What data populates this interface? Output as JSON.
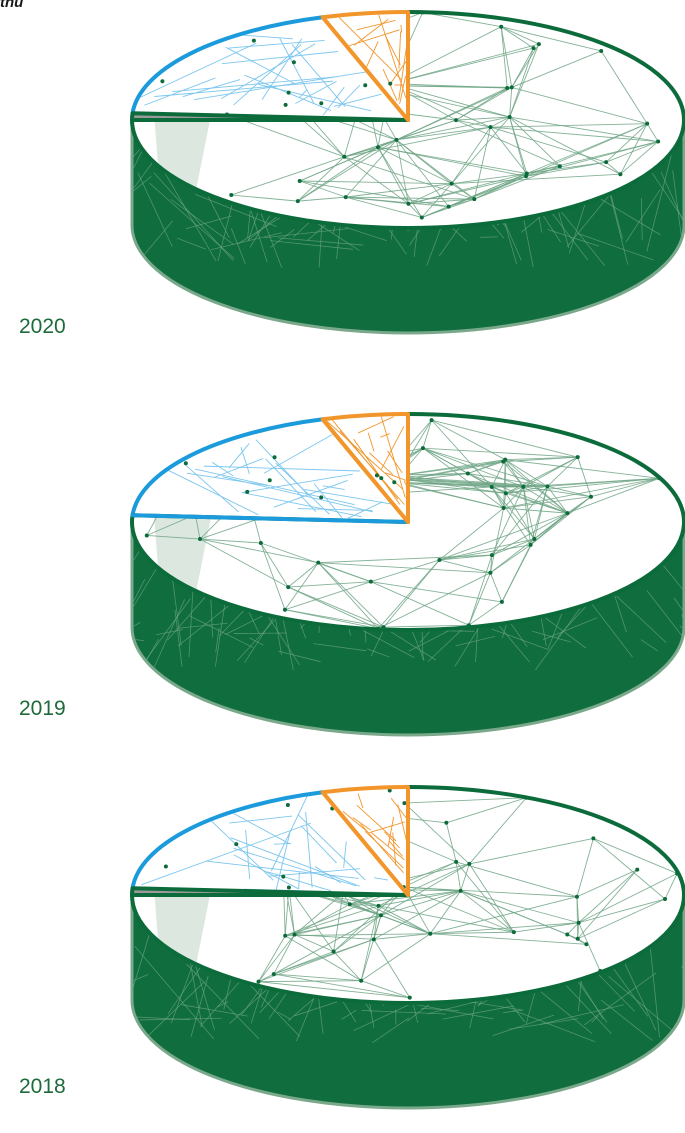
{
  "page": {
    "top_text": "thu"
  },
  "colors": {
    "dark_green": "#0c6b3b",
    "side_green": "#0f6d3e",
    "light_green": "#7aa88a",
    "blue": "#1b9bdc",
    "light_blue": "#7cc6ee",
    "orange": "#f2952a",
    "grey": "#9a9a9a",
    "pale_green": "#dbe7df"
  },
  "chart_data": [
    {
      "type": "pie",
      "label": "2020",
      "slices": [
        {
          "key": "green",
          "value": 0.75,
          "color": "#0c6b3b"
        },
        {
          "key": "grey",
          "value": 0.01,
          "color": "#9a9a9a"
        },
        {
          "key": "blue",
          "value": 0.19,
          "color": "#1b9bdc"
        },
        {
          "key": "orange",
          "value": 0.05,
          "color": "#f2952a"
        }
      ]
    },
    {
      "type": "pie",
      "label": "2019",
      "slices": [
        {
          "key": "green",
          "value": 0.76,
          "color": "#0c6b3b"
        },
        {
          "key": "grey",
          "value": 0.0,
          "color": "#9a9a9a"
        },
        {
          "key": "blue",
          "value": 0.19,
          "color": "#1b9bdc"
        },
        {
          "key": "orange",
          "value": 0.05,
          "color": "#f2952a"
        }
      ]
    },
    {
      "type": "pie",
      "label": "2018",
      "slices": [
        {
          "key": "green",
          "value": 0.75,
          "color": "#0c6b3b"
        },
        {
          "key": "grey",
          "value": 0.01,
          "color": "#9a9a9a"
        },
        {
          "key": "blue",
          "value": 0.19,
          "color": "#1b9bdc"
        },
        {
          "key": "orange",
          "value": 0.05,
          "color": "#f2952a"
        }
      ]
    }
  ]
}
